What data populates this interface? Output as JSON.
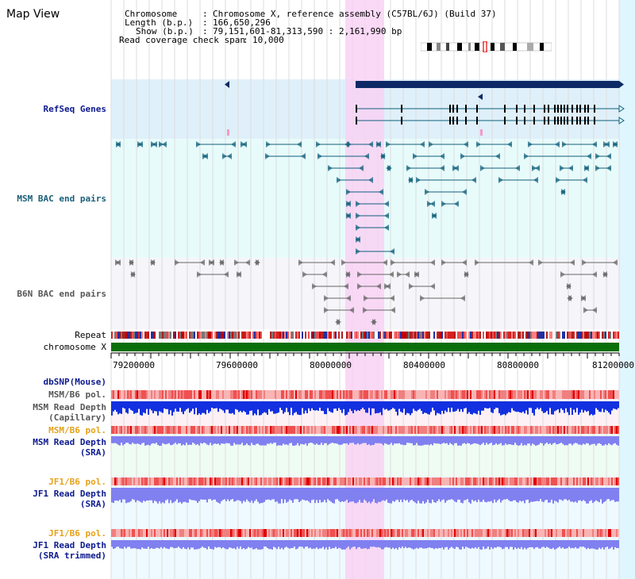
{
  "title": "Map View",
  "info": {
    "chromosome_key": "Chromosome",
    "chromosome_val": "Chromosome X, reference assembly (C57BL/6J) (Build 37)",
    "length_key": "Length (b.p.)",
    "length_val": "166,650,296",
    "show_key": "Show (b.p.)",
    "show_val": "79,151,601-81,313,590 : 2,161,990 bp",
    "coverage_key": "Read coverage check span",
    "coverage_val": "10,000"
  },
  "tracks": {
    "refseq": "RefSeq Genes",
    "msm_bac": "MSM BAC end pairs",
    "b6n_bac": "B6N BAC end pairs",
    "repeat": "Repeat",
    "chromosome": "chromosome X",
    "dbsnp": "dbSNP(Mouse)",
    "msm_b6_pol_1": "MSM/B6 pol.",
    "msm_depth_cap": "MSM Read Depth\n(Capillary)",
    "msm_b6_pol_2": "MSM/B6 pol.",
    "msm_depth_sra": "MSM Read Depth\n(SRA)",
    "jf1_b6_pol_1": "JF1/B6 pol.",
    "jf1_depth_sra": "JF1 Read Depth\n(SRA)",
    "jf1_b6_pol_2": "JF1/B6 pol.",
    "jf1_depth_trim": "JF1 Read Depth\n(SRA trimmed)"
  },
  "axis_ticks": [
    "79200000",
    "79600000",
    "80000000",
    "80400000",
    "80800000",
    "81200000"
  ],
  "colors": {
    "highlight": "#f8d2f3",
    "refseq_bg": "#dff0fa",
    "msm_bg": "#e8fbfb",
    "b6n_bg": "#f5f5fa",
    "gene_dark": "#0d2a66",
    "gene_teal": "#0f5f7a",
    "chromosome": "#0a6e0a",
    "depth_blue": "#1230e0",
    "depth_light": "#8080f0",
    "pol_red": "#f08080"
  }
}
